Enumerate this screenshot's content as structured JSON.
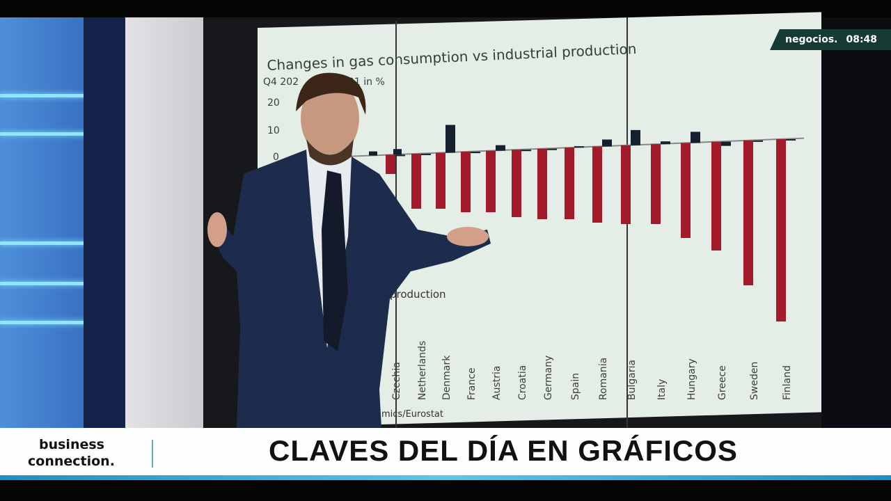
{
  "channel_badge": {
    "name": "negocios.",
    "time": "08:48"
  },
  "screen_chart": {
    "title": "Changes in gas consumption vs industrial production",
    "subtitle_partial": "Q4 202",
    "subtitle_partial_2": "021 in %",
    "y_ticks": [
      "20",
      "10",
      "0"
    ],
    "legend_partial": "production",
    "source_partial": "mics/Eurostat",
    "countries": [
      "Czechia",
      "Netherlands",
      "Denmark",
      "France",
      "Austria",
      "Croatia",
      "Germany",
      "Spain",
      "Romania",
      "Bulgaria",
      "Italy",
      "Hungary",
      "Greece",
      "Sweden",
      "Finland"
    ],
    "colors": {
      "gas": "#a31a2a",
      "industrial": "#14202e"
    }
  },
  "lower_third": {
    "brand_line1": "business",
    "brand_line2": "connection.",
    "headline": "CLAVES DEL DÍA EN GRÁFICOS"
  }
}
